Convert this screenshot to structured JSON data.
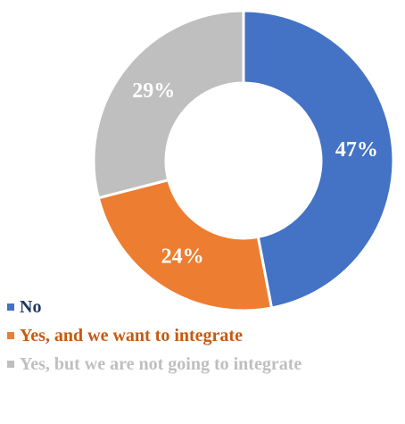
{
  "chart_data": {
    "type": "pie",
    "style": "donut",
    "series": [
      {
        "name": "No",
        "value": 47,
        "label": "47%",
        "color": "#4472c4"
      },
      {
        "name": "Yes, and we want to integrate",
        "value": 24,
        "label": "24%",
        "color": "#ed7d31"
      },
      {
        "name": "Yes, but we are not going to integrate",
        "value": 29,
        "label": "29%",
        "color": "#bfbfbf"
      }
    ],
    "legend_position": "bottom-left",
    "label_color": "#ffffff",
    "legend_text_colors": [
      "#1f3864",
      "#c55a11",
      "#bfbfbf"
    ]
  }
}
